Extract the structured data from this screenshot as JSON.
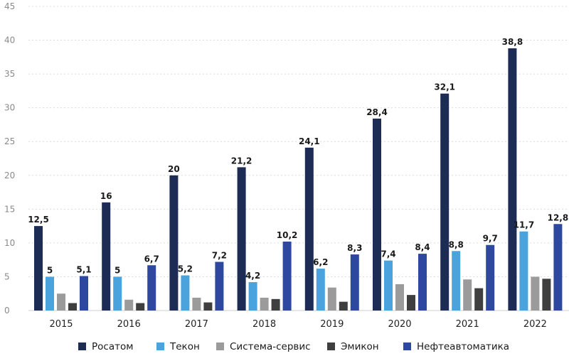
{
  "chart_data": {
    "type": "bar",
    "title": "",
    "xlabel": "",
    "ylabel": "",
    "categories": [
      "2015",
      "2016",
      "2017",
      "2018",
      "2019",
      "2020",
      "2021",
      "2022"
    ],
    "ylim": [
      0,
      45
    ],
    "yticks": [
      "0",
      "5",
      "10",
      "15",
      "20",
      "25",
      "30",
      "35",
      "40",
      "45"
    ],
    "grid": true,
    "legend_position": "bottom",
    "series": [
      {
        "name": "Росатом",
        "color": "#1c2c55",
        "values": [
          12.5,
          16,
          20,
          21.2,
          24.1,
          28.4,
          32.1,
          38.8
        ],
        "labels": [
          "12,5",
          "16",
          "20",
          "21,2",
          "24,1",
          "28,4",
          "32,1",
          "38,8"
        ]
      },
      {
        "name": "Текон",
        "color": "#4aa3dc",
        "values": [
          5,
          5,
          5.2,
          4.2,
          6.2,
          7.4,
          8.8,
          11.7
        ],
        "labels": [
          "5",
          "5",
          "5,2",
          "4,2",
          "6,2",
          "7,4",
          "8,8",
          "11,7"
        ]
      },
      {
        "name": "Система-сервис",
        "color": "#9b9b9b",
        "values": [
          2.5,
          1.6,
          1.9,
          1.9,
          3.4,
          3.9,
          4.6,
          5.0
        ],
        "labels": null
      },
      {
        "name": "Эмикон",
        "color": "#3f3f3f",
        "values": [
          1.1,
          1.1,
          1.2,
          1.7,
          1.3,
          2.3,
          3.3,
          4.7
        ],
        "labels": null
      },
      {
        "name": "Нефтеавтоматика",
        "color": "#2e48a0",
        "values": [
          5.1,
          6.7,
          7.2,
          10.2,
          8.3,
          8.4,
          9.7,
          12.8
        ],
        "labels": [
          "5,1",
          "6,7",
          "7,2",
          "10,2",
          "8,3",
          "8,4",
          "9,7",
          "12,8"
        ]
      }
    ]
  }
}
